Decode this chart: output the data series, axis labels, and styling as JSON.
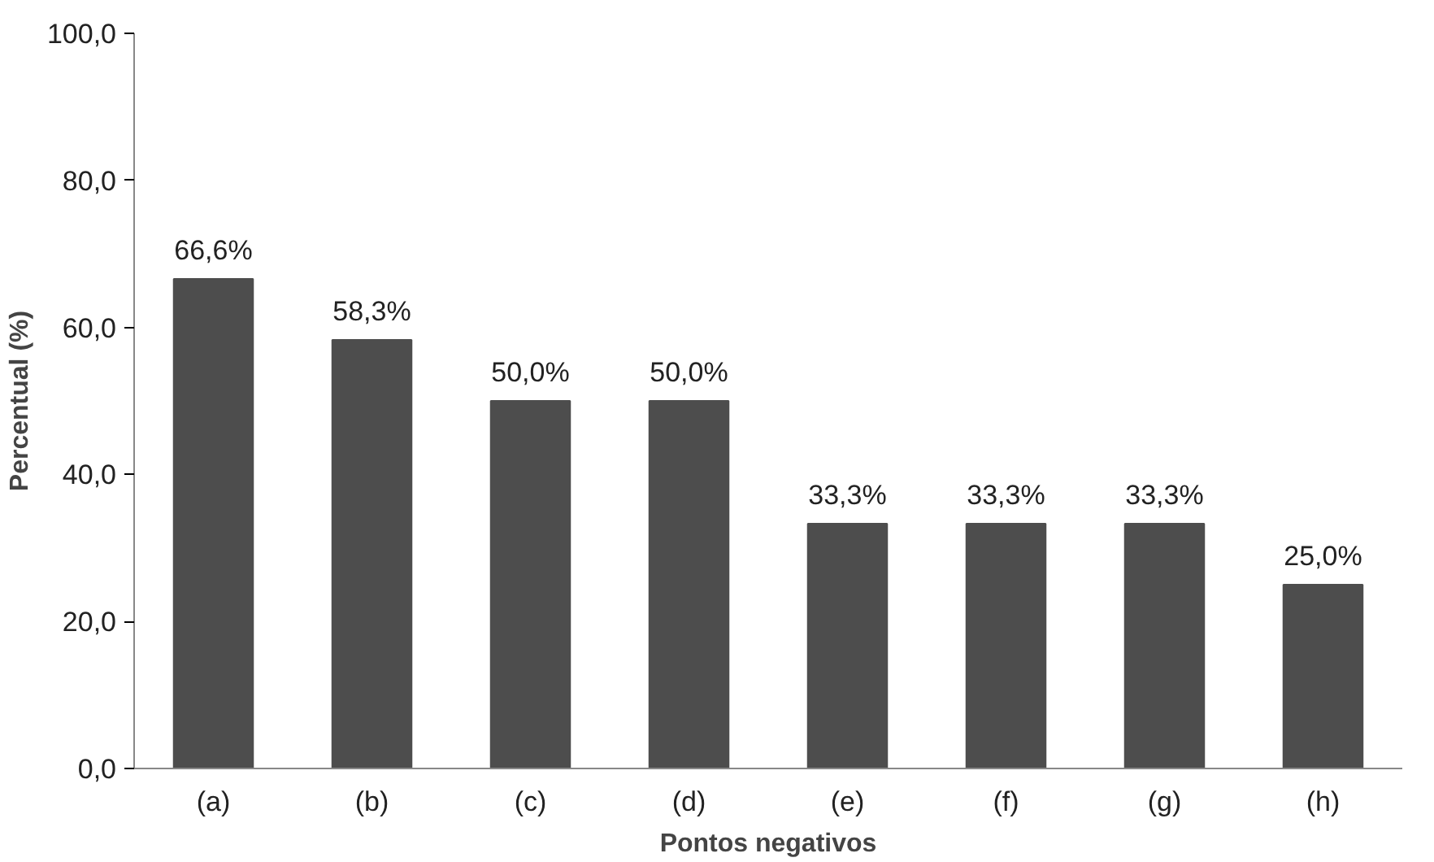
{
  "chart_data": {
    "type": "bar",
    "xlabel": "Pontos negativos",
    "ylabel": "Percentual (%)",
    "categories": [
      "(a)",
      "(b)",
      "(c)",
      "(d)",
      "(e)",
      "(f)",
      "(g)",
      "(h)"
    ],
    "values": [
      66.6,
      58.3,
      50.0,
      50.0,
      33.3,
      33.3,
      33.3,
      25.0
    ],
    "value_labels": [
      "66,6%",
      "58,3%",
      "50,0%",
      "50,0%",
      "33,3%",
      "33,3%",
      "33,3%",
      "25,0%"
    ],
    "color": "#4d4d4d",
    "ylim": [
      0,
      100
    ],
    "yticks": [
      {
        "value": 0,
        "label": "0,0"
      },
      {
        "value": 20,
        "label": "20,0"
      },
      {
        "value": 40,
        "label": "40,0"
      },
      {
        "value": 60,
        "label": "60,0"
      },
      {
        "value": 80,
        "label": "80,0"
      },
      {
        "value": 100,
        "label": "100,0"
      }
    ],
    "grid": false
  }
}
